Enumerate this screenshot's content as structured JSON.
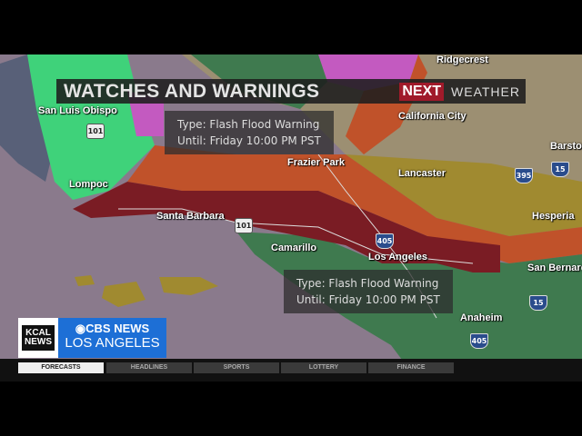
{
  "header": {
    "title": "WATCHES AND WARNINGS",
    "brand_next": "NEXT",
    "brand_weather": "WEATHER"
  },
  "popups": [
    {
      "type": "Type: Flash Flood Warning",
      "until": "Until: Friday 10:00 PM PST"
    },
    {
      "type": "Type: Flash Flood Warning",
      "until": "Until: Friday 10:00 PM PST"
    }
  ],
  "cities": [
    "Ridgecrest",
    "San Luis Obispo",
    "California City",
    "Barstow",
    "Frazier Park",
    "Lancaster",
    "Lompoc",
    "Santa Barbara",
    "Hesperia",
    "Camarillo",
    "Los Angeles",
    "San Bernardino",
    "Anaheim"
  ],
  "highways": [
    "101",
    "101",
    "395",
    "15",
    "405",
    "15",
    "405"
  ],
  "legend_colors": {
    "flash_flood_warning": "#7a1c24",
    "orange_alert": "#c0522a",
    "green_alert": "#3fd27a",
    "pink_alert": "#c35ac0",
    "yellow_alert": "#a08a30",
    "land_green": "#3f7a4f",
    "ocean": "#8a7a8c"
  },
  "logo": {
    "kcal_line1": "KCAL",
    "kcal_line2": "NEWS",
    "cbs_top": "CBS NEWS",
    "cbs_bottom": "LOS ANGELES"
  },
  "ticker": {
    "tabs": [
      "FORECASTS",
      "HEADLINES",
      "SPORTS",
      "LOTTERY",
      "FINANCE"
    ],
    "active": "FORECASTS"
  }
}
